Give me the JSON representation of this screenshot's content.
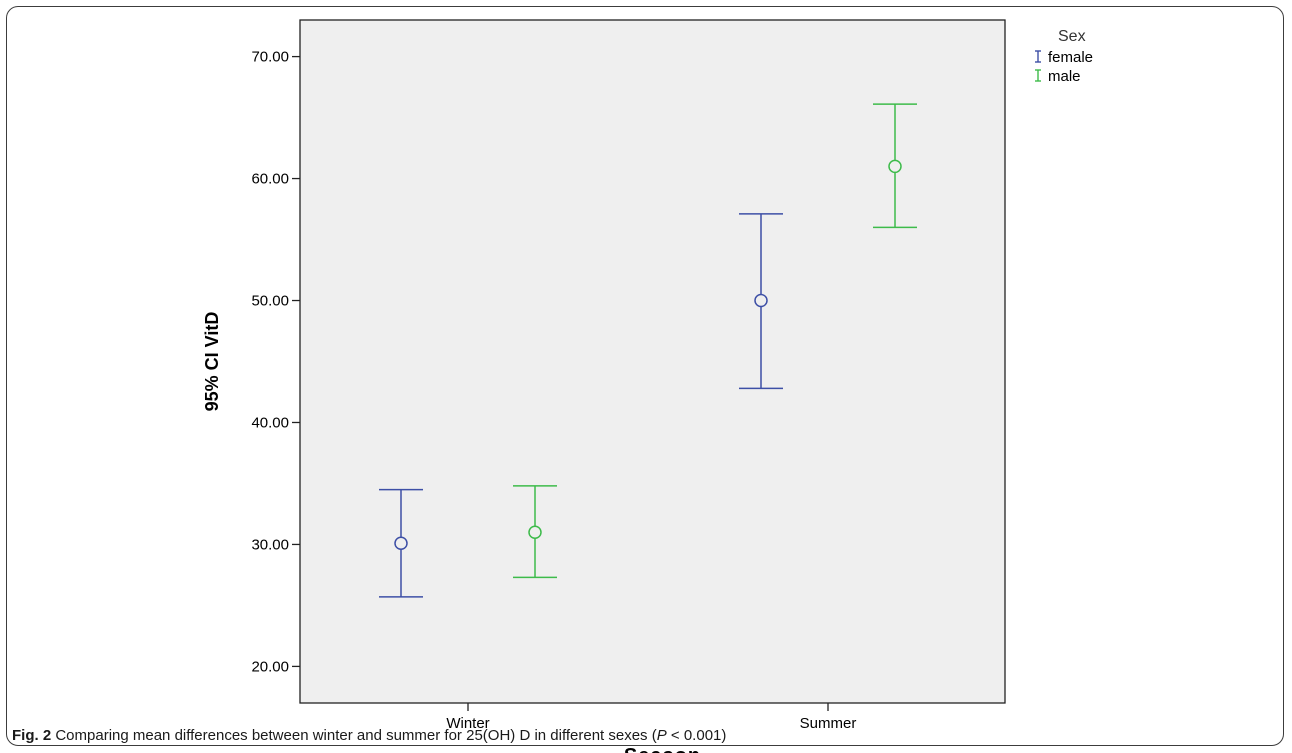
{
  "caption": {
    "fig_label": "Fig. 2",
    "text_before": " Comparing mean differences between winter and summer for 25(OH) D in different sexes (",
    "p_italic": "P",
    "text_after": " < 0.001)"
  },
  "chart_data": {
    "type": "errorbar",
    "xlabel": "Season",
    "ylabel": "95% CI VitD",
    "categories": [
      "Winter",
      "Summer"
    ],
    "ylim": [
      17,
      73
    ],
    "yticks": [
      20,
      30,
      40,
      50,
      60,
      70
    ],
    "ytick_labels": [
      "20.00",
      "30.00",
      "40.00",
      "50.00",
      "60.00",
      "70.00"
    ],
    "grid": false,
    "legend": {
      "title": "Sex",
      "position": "top-right outside"
    },
    "series": [
      {
        "name": "female",
        "color": "#3d4fa6",
        "mean": [
          30.1,
          50.0
        ],
        "lower": [
          25.7,
          42.8
        ],
        "upper": [
          34.5,
          57.1
        ]
      },
      {
        "name": "male",
        "color": "#3dbb4a",
        "mean": [
          31.0,
          61.0
        ],
        "lower": [
          27.3,
          56.0
        ],
        "upper": [
          34.8,
          66.1
        ]
      }
    ],
    "marker": "open-circle",
    "background": "#efefef"
  }
}
